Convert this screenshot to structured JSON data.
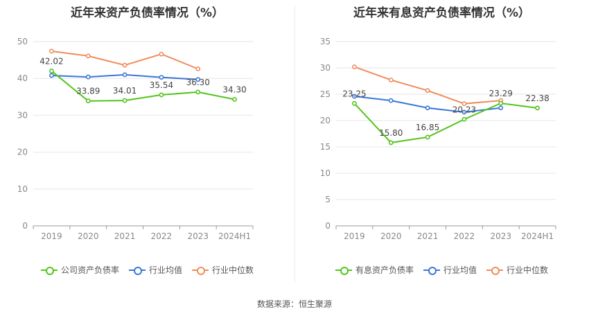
{
  "footer": {
    "source": "数据来源：恒生聚源"
  },
  "chart_data": [
    {
      "type": "line",
      "title": "近年来资产负债率情况（%）",
      "categories": [
        "2019",
        "2020",
        "2021",
        "2022",
        "2023",
        "2024H1"
      ],
      "ylim": [
        0,
        50
      ],
      "yticks": [
        0,
        10,
        20,
        30,
        40,
        50
      ],
      "grid": true,
      "legend_position": "bottom",
      "series": [
        {
          "name": "公司资产负债率",
          "color": "#52c41a",
          "values": [
            42.02,
            33.89,
            34.01,
            35.54,
            36.3,
            34.3
          ],
          "labels": [
            "42.02",
            "33.89",
            "34.01",
            "35.54",
            "36.30",
            "34.30"
          ],
          "show_labels": true
        },
        {
          "name": "行业均值",
          "color": "#3a76d8",
          "values": [
            40.8,
            40.4,
            41.0,
            40.3,
            39.7,
            null
          ],
          "show_labels": false
        },
        {
          "name": "行业中位数",
          "color": "#f08c5a",
          "values": [
            47.4,
            46.1,
            43.6,
            46.6,
            42.6,
            null
          ],
          "show_labels": false
        }
      ]
    },
    {
      "type": "line",
      "title": "近年来有息资产负债率情况（%）",
      "categories": [
        "2019",
        "2020",
        "2021",
        "2022",
        "2023",
        "2024H1"
      ],
      "ylim": [
        0,
        35
      ],
      "yticks": [
        0,
        5,
        10,
        15,
        20,
        25,
        30,
        35
      ],
      "grid": true,
      "legend_position": "bottom",
      "series": [
        {
          "name": "有息资产负债率",
          "color": "#52c41a",
          "values": [
            23.25,
            15.8,
            16.85,
            20.23,
            23.29,
            22.38
          ],
          "labels": [
            "23.25",
            "15.80",
            "16.85",
            "20.23",
            "23.29",
            "22.38"
          ],
          "show_labels": true
        },
        {
          "name": "行业均值",
          "color": "#3a76d8",
          "values": [
            24.6,
            23.8,
            22.4,
            21.6,
            22.4,
            null
          ],
          "show_labels": false
        },
        {
          "name": "行业中位数",
          "color": "#f08c5a",
          "values": [
            30.2,
            27.7,
            25.7,
            23.2,
            23.8,
            null
          ],
          "show_labels": false
        }
      ]
    }
  ]
}
